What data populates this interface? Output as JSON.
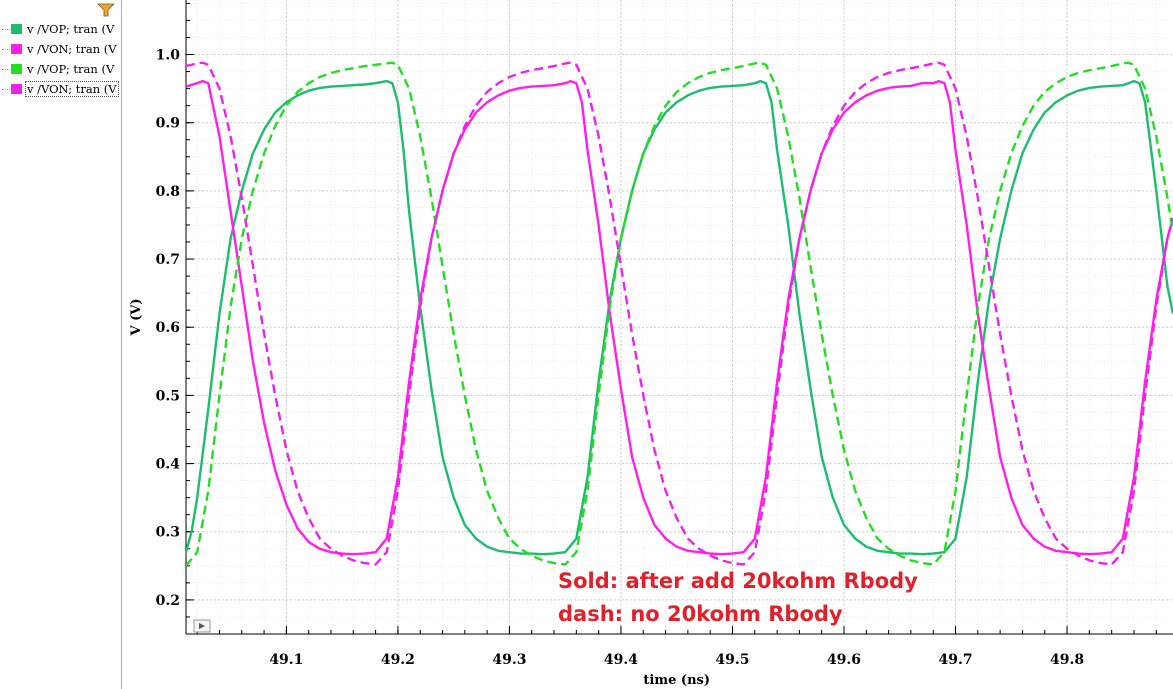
{
  "legend": {
    "items": [
      {
        "label": "v /VOP; tran (V",
        "color": "#1ebc6e"
      },
      {
        "label": "v /VON; tran (V",
        "color": "#ff1fe6"
      },
      {
        "label": "v /VOP; tran (V",
        "color": "#22dd22"
      },
      {
        "label": "v /VON; tran (V",
        "color": "#ee22ee"
      }
    ],
    "filter_icon": "filter-icon"
  },
  "chart_data": {
    "type": "line",
    "xlabel": "time (ns)",
    "ylabel": "V (V)",
    "xlim": [
      49.01,
      49.895
    ],
    "ylim": [
      0.15,
      1.08
    ],
    "grid": true,
    "x_ticks": [
      "49.1",
      "49.2",
      "49.3",
      "49.4",
      "49.5",
      "49.6",
      "49.7",
      "49.8"
    ],
    "y_ticks": [
      "0.2",
      "0.3",
      "0.4",
      "0.5",
      "0.6",
      "0.7",
      "0.8",
      "0.9",
      "1.0"
    ],
    "period_ns": 0.33,
    "series": [
      {
        "name": "v /VOP; tran (V",
        "color": "#1ebc6e",
        "dash": false,
        "x": [
          49.01,
          49.015,
          49.02,
          49.03,
          49.04,
          49.05,
          49.06,
          49.07,
          49.08,
          49.09,
          49.1,
          49.11,
          49.12,
          49.13,
          49.14,
          49.15,
          49.16,
          49.17,
          49.18,
          49.19,
          49.195,
          49.2,
          49.205,
          49.21,
          49.22,
          49.23,
          49.24,
          49.25,
          49.26,
          49.27,
          49.28,
          49.29,
          49.3,
          49.31,
          49.32,
          49.33,
          49.34,
          49.35,
          49.36,
          49.37,
          49.38,
          49.39,
          49.4,
          49.41,
          49.42,
          49.43,
          49.44,
          49.45,
          49.46,
          49.47,
          49.48,
          49.49,
          49.5,
          49.51,
          49.52,
          49.525,
          49.53,
          49.535,
          49.54,
          49.55,
          49.56,
          49.57,
          49.58,
          49.59,
          49.6,
          49.61,
          49.62,
          49.63,
          49.64,
          49.65,
          49.66,
          49.67,
          49.68,
          49.69,
          49.7,
          49.71,
          49.72,
          49.73,
          49.74,
          49.75,
          49.76,
          49.77,
          49.78,
          49.79,
          49.8,
          49.81,
          49.82,
          49.83,
          49.84,
          49.85,
          49.855,
          49.86,
          49.865,
          49.87,
          49.88,
          49.89,
          49.895
        ],
        "y": [
          0.27,
          0.3,
          0.35,
          0.48,
          0.62,
          0.73,
          0.8,
          0.855,
          0.89,
          0.915,
          0.93,
          0.94,
          0.947,
          0.951,
          0.953,
          0.954,
          0.955,
          0.956,
          0.958,
          0.961,
          0.958,
          0.93,
          0.86,
          0.77,
          0.63,
          0.51,
          0.41,
          0.35,
          0.31,
          0.29,
          0.278,
          0.272,
          0.27,
          0.268,
          0.268,
          0.267,
          0.268,
          0.27,
          0.29,
          0.38,
          0.52,
          0.64,
          0.73,
          0.8,
          0.855,
          0.89,
          0.915,
          0.93,
          0.94,
          0.947,
          0.951,
          0.953,
          0.954,
          0.955,
          0.958,
          0.961,
          0.958,
          0.93,
          0.86,
          0.75,
          0.62,
          0.51,
          0.41,
          0.35,
          0.31,
          0.29,
          0.278,
          0.272,
          0.27,
          0.268,
          0.268,
          0.267,
          0.268,
          0.27,
          0.29,
          0.38,
          0.52,
          0.64,
          0.73,
          0.8,
          0.855,
          0.89,
          0.915,
          0.93,
          0.94,
          0.947,
          0.951,
          0.953,
          0.954,
          0.955,
          0.958,
          0.961,
          0.958,
          0.93,
          0.8,
          0.66,
          0.62
        ]
      },
      {
        "name": "v /VON; tran (V",
        "color": "#ff1fe6",
        "dash": false,
        "x": [
          49.01,
          49.02,
          49.025,
          49.03,
          49.04,
          49.05,
          49.06,
          49.07,
          49.08,
          49.09,
          49.1,
          49.11,
          49.12,
          49.13,
          49.14,
          49.15,
          49.16,
          49.17,
          49.18,
          49.19,
          49.2,
          49.21,
          49.22,
          49.23,
          49.24,
          49.25,
          49.26,
          49.27,
          49.28,
          49.29,
          49.3,
          49.31,
          49.32,
          49.33,
          49.34,
          49.35,
          49.355,
          49.36,
          49.365,
          49.37,
          49.38,
          49.39,
          49.4,
          49.41,
          49.42,
          49.43,
          49.44,
          49.45,
          49.46,
          49.47,
          49.48,
          49.49,
          49.5,
          49.51,
          49.52,
          49.53,
          49.54,
          49.55,
          49.56,
          49.57,
          49.58,
          49.59,
          49.6,
          49.61,
          49.62,
          49.63,
          49.64,
          49.65,
          49.66,
          49.67,
          49.68,
          49.685,
          49.69,
          49.695,
          49.7,
          49.71,
          49.72,
          49.73,
          49.74,
          49.75,
          49.76,
          49.77,
          49.78,
          49.79,
          49.8,
          49.81,
          49.82,
          49.83,
          49.84,
          49.85,
          49.86,
          49.87,
          49.88,
          49.89,
          49.895
        ],
        "y": [
          0.953,
          0.958,
          0.961,
          0.958,
          0.88,
          0.77,
          0.66,
          0.55,
          0.46,
          0.39,
          0.34,
          0.305,
          0.285,
          0.275,
          0.27,
          0.268,
          0.267,
          0.268,
          0.27,
          0.29,
          0.38,
          0.52,
          0.64,
          0.73,
          0.8,
          0.855,
          0.89,
          0.915,
          0.93,
          0.94,
          0.947,
          0.951,
          0.953,
          0.954,
          0.955,
          0.958,
          0.961,
          0.958,
          0.93,
          0.86,
          0.75,
          0.62,
          0.51,
          0.41,
          0.35,
          0.31,
          0.29,
          0.278,
          0.272,
          0.27,
          0.268,
          0.267,
          0.268,
          0.27,
          0.29,
          0.38,
          0.52,
          0.64,
          0.73,
          0.8,
          0.855,
          0.89,
          0.915,
          0.93,
          0.94,
          0.947,
          0.951,
          0.953,
          0.954,
          0.958,
          0.958,
          0.961,
          0.958,
          0.93,
          0.86,
          0.75,
          0.62,
          0.51,
          0.41,
          0.35,
          0.31,
          0.29,
          0.278,
          0.272,
          0.27,
          0.268,
          0.267,
          0.268,
          0.27,
          0.29,
          0.38,
          0.52,
          0.64,
          0.73,
          0.76
        ]
      },
      {
        "name": "v /VOP; tran (V",
        "color": "#22dd22",
        "dash": true,
        "x": [
          49.01,
          49.02,
          49.03,
          49.04,
          49.05,
          49.06,
          49.07,
          49.08,
          49.09,
          49.1,
          49.11,
          49.12,
          49.13,
          49.14,
          49.15,
          49.16,
          49.17,
          49.18,
          49.19,
          49.195,
          49.2,
          49.21,
          49.22,
          49.23,
          49.24,
          49.25,
          49.26,
          49.27,
          49.28,
          49.29,
          49.3,
          49.31,
          49.32,
          49.33,
          49.34,
          49.35,
          49.36,
          49.37,
          49.38,
          49.39,
          49.4,
          49.41,
          49.42,
          49.43,
          49.44,
          49.45,
          49.46,
          49.47,
          49.48,
          49.49,
          49.5,
          49.51,
          49.52,
          49.525,
          49.53,
          49.54,
          49.55,
          49.56,
          49.57,
          49.58,
          49.59,
          49.6,
          49.61,
          49.62,
          49.63,
          49.64,
          49.65,
          49.66,
          49.67,
          49.68,
          49.69,
          49.7,
          49.71,
          49.72,
          49.73,
          49.74,
          49.75,
          49.76,
          49.77,
          49.78,
          49.79,
          49.8,
          49.81,
          49.82,
          49.83,
          49.84,
          49.85,
          49.855,
          49.86,
          49.87,
          49.88,
          49.89,
          49.895
        ],
        "y": [
          0.25,
          0.27,
          0.36,
          0.5,
          0.63,
          0.73,
          0.8,
          0.855,
          0.895,
          0.925,
          0.945,
          0.958,
          0.967,
          0.973,
          0.977,
          0.98,
          0.983,
          0.985,
          0.987,
          0.988,
          0.985,
          0.95,
          0.88,
          0.79,
          0.69,
          0.59,
          0.5,
          0.42,
          0.36,
          0.32,
          0.29,
          0.275,
          0.265,
          0.258,
          0.254,
          0.252,
          0.27,
          0.36,
          0.5,
          0.63,
          0.73,
          0.8,
          0.855,
          0.895,
          0.925,
          0.945,
          0.958,
          0.967,
          0.973,
          0.977,
          0.98,
          0.983,
          0.987,
          0.988,
          0.985,
          0.95,
          0.88,
          0.79,
          0.69,
          0.59,
          0.5,
          0.42,
          0.36,
          0.32,
          0.29,
          0.275,
          0.265,
          0.258,
          0.254,
          0.252,
          0.27,
          0.36,
          0.5,
          0.63,
          0.73,
          0.8,
          0.855,
          0.895,
          0.925,
          0.945,
          0.958,
          0.967,
          0.973,
          0.977,
          0.98,
          0.983,
          0.987,
          0.988,
          0.985,
          0.95,
          0.88,
          0.79,
          0.74
        ]
      },
      {
        "name": "v /VON; tran (V",
        "color": "#ee22ee",
        "dash": true,
        "x": [
          49.01,
          49.02,
          49.025,
          49.03,
          49.04,
          49.05,
          49.06,
          49.07,
          49.08,
          49.09,
          49.1,
          49.11,
          49.12,
          49.13,
          49.14,
          49.15,
          49.16,
          49.17,
          49.18,
          49.19,
          49.2,
          49.21,
          49.22,
          49.23,
          49.24,
          49.25,
          49.26,
          49.27,
          49.28,
          49.29,
          49.3,
          49.31,
          49.32,
          49.33,
          49.34,
          49.35,
          49.355,
          49.36,
          49.37,
          49.38,
          49.39,
          49.4,
          49.41,
          49.42,
          49.43,
          49.44,
          49.45,
          49.46,
          49.47,
          49.48,
          49.49,
          49.5,
          49.51,
          49.52,
          49.53,
          49.54,
          49.55,
          49.56,
          49.57,
          49.58,
          49.59,
          49.6,
          49.61,
          49.62,
          49.63,
          49.64,
          49.65,
          49.66,
          49.67,
          49.68,
          49.685,
          49.69,
          49.7,
          49.71,
          49.72,
          49.73,
          49.74,
          49.75,
          49.76,
          49.77,
          49.78,
          49.79,
          49.8,
          49.81,
          49.82,
          49.83,
          49.84,
          49.85,
          49.86,
          49.87,
          49.88,
          49.89,
          49.895
        ],
        "y": [
          0.983,
          0.987,
          0.988,
          0.985,
          0.95,
          0.88,
          0.79,
          0.69,
          0.59,
          0.5,
          0.42,
          0.36,
          0.32,
          0.29,
          0.275,
          0.265,
          0.258,
          0.254,
          0.252,
          0.27,
          0.36,
          0.5,
          0.63,
          0.73,
          0.8,
          0.855,
          0.895,
          0.925,
          0.945,
          0.958,
          0.967,
          0.973,
          0.977,
          0.98,
          0.983,
          0.987,
          0.988,
          0.985,
          0.95,
          0.88,
          0.79,
          0.69,
          0.59,
          0.5,
          0.42,
          0.36,
          0.32,
          0.29,
          0.275,
          0.265,
          0.258,
          0.254,
          0.252,
          0.27,
          0.36,
          0.5,
          0.63,
          0.73,
          0.8,
          0.855,
          0.895,
          0.925,
          0.945,
          0.958,
          0.967,
          0.973,
          0.977,
          0.98,
          0.983,
          0.987,
          0.988,
          0.985,
          0.95,
          0.88,
          0.79,
          0.69,
          0.59,
          0.5,
          0.42,
          0.36,
          0.32,
          0.29,
          0.275,
          0.265,
          0.258,
          0.254,
          0.252,
          0.27,
          0.36,
          0.5,
          0.63,
          0.73,
          0.76
        ]
      }
    ],
    "annotations": [
      {
        "text": "Sold: after add 20kohm Rbody",
        "color": "#e0202a"
      },
      {
        "text": "dash:  no 20kohm Rbody",
        "color": "#e0202a"
      }
    ]
  },
  "plot": {
    "expand_icon": "play-triangle-icon"
  }
}
